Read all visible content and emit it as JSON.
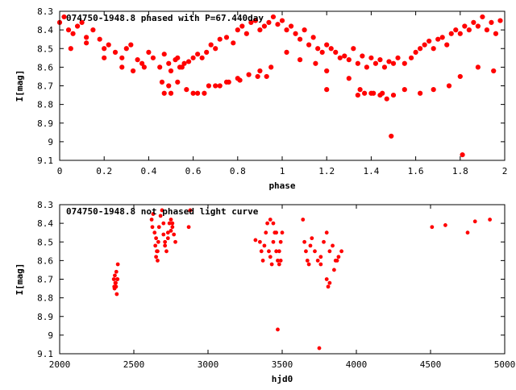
{
  "chart_data": [
    {
      "type": "scatter",
      "title": "074750-1948.8 phased with P=67.440day",
      "xlabel": "phase",
      "ylabel": "I[mag]",
      "xlim": [
        0,
        2
      ],
      "ylim": [
        9.1,
        8.3
      ],
      "y_inverted": true,
      "grid": false,
      "color": "#ff0000",
      "xticks": [
        "0",
        "0.2",
        "0.4",
        "0.6",
        "0.8",
        "1",
        "1.2",
        "1.4",
        "1.6",
        "1.8",
        "2"
      ],
      "yticks": [
        "8.3",
        "8.4",
        "8.5",
        "8.6",
        "8.7",
        "8.8",
        "8.9",
        "9",
        "9.1"
      ],
      "x": [
        0.0,
        0.02,
        0.04,
        0.06,
        0.08,
        0.1,
        0.12,
        0.15,
        0.18,
        0.2,
        0.22,
        0.25,
        0.28,
        0.3,
        0.32,
        0.35,
        0.37,
        0.4,
        0.42,
        0.45,
        0.47,
        0.49,
        0.5,
        0.52,
        0.54,
        0.56,
        0.58,
        0.6,
        0.62,
        0.64,
        0.66,
        0.68,
        0.7,
        0.72,
        0.75,
        0.78,
        0.8,
        0.82,
        0.84,
        0.86,
        0.88,
        0.9,
        0.92,
        0.94,
        0.96,
        0.98,
        1.0,
        1.02,
        1.04,
        1.06,
        1.08,
        1.1,
        1.12,
        1.14,
        1.16,
        1.18,
        1.2,
        1.22,
        1.24,
        1.26,
        1.28,
        1.3,
        1.32,
        1.34,
        1.36,
        1.38,
        1.4,
        1.42,
        1.44,
        1.46,
        1.48,
        1.5,
        1.52,
        1.55,
        1.58,
        1.6,
        1.62,
        1.64,
        1.66,
        1.68,
        1.7,
        1.72,
        1.74,
        1.76,
        1.78,
        1.8,
        1.82,
        1.84,
        1.86,
        1.88,
        1.9,
        1.92,
        1.94,
        1.96,
        1.98,
        0.05,
        0.12,
        0.2,
        0.28,
        0.33,
        0.38,
        0.46,
        0.49,
        0.53,
        0.57,
        0.62,
        0.67,
        0.72,
        0.76,
        0.8,
        0.85,
        0.9,
        0.95,
        1.02,
        1.08,
        1.15,
        1.2,
        1.3,
        1.35,
        1.4,
        1.45,
        1.5,
        1.55,
        1.62,
        1.68,
        1.75,
        1.8,
        1.88,
        1.95,
        1.2,
        1.34,
        1.37,
        1.41,
        1.44,
        1.47,
        1.49,
        1.81,
        0.53,
        0.55,
        0.47,
        0.5,
        0.6,
        0.65,
        0.7,
        0.75,
        0.81,
        0.89,
        0.93
      ],
      "y": [
        8.36,
        8.33,
        8.4,
        8.42,
        8.38,
        8.36,
        8.44,
        8.4,
        8.45,
        8.5,
        8.48,
        8.52,
        8.55,
        8.5,
        8.48,
        8.56,
        8.58,
        8.52,
        8.55,
        8.6,
        8.53,
        8.58,
        8.62,
        8.56,
        8.6,
        8.58,
        8.57,
        8.55,
        8.53,
        8.55,
        8.52,
        8.48,
        8.5,
        8.45,
        8.44,
        8.47,
        8.4,
        8.38,
        8.42,
        8.36,
        8.35,
        8.4,
        8.38,
        8.36,
        8.33,
        8.37,
        8.35,
        8.4,
        8.38,
        8.42,
        8.45,
        8.4,
        8.48,
        8.44,
        8.5,
        8.52,
        8.48,
        8.5,
        8.52,
        8.55,
        8.54,
        8.56,
        8.5,
        8.58,
        8.54,
        8.6,
        8.55,
        8.58,
        8.56,
        8.6,
        8.57,
        8.58,
        8.55,
        8.58,
        8.55,
        8.52,
        8.5,
        8.48,
        8.46,
        8.5,
        8.45,
        8.44,
        8.48,
        8.42,
        8.4,
        8.42,
        8.38,
        8.4,
        8.36,
        8.38,
        8.33,
        8.4,
        8.36,
        8.42,
        8.35,
        8.5,
        8.47,
        8.55,
        8.6,
        8.62,
        8.6,
        8.68,
        8.7,
        8.68,
        8.72,
        8.74,
        8.7,
        8.7,
        8.68,
        8.66,
        8.64,
        8.62,
        8.6,
        8.52,
        8.56,
        8.58,
        8.62,
        8.66,
        8.72,
        8.74,
        8.74,
        8.75,
        8.72,
        8.74,
        8.72,
        8.7,
        8.65,
        8.6,
        8.62,
        8.72,
        8.75,
        8.74,
        8.74,
        8.75,
        8.77,
        8.97,
        9.07,
        8.55,
        8.6,
        8.74,
        8.74,
        8.74,
        8.74,
        8.7,
        8.68,
        8.67,
        8.65,
        8.65
      ]
    },
    {
      "type": "scatter",
      "title": "074750-1948.8 not phased light curve",
      "xlabel": "hjd0",
      "ylabel": "I[mag]",
      "xlim": [
        2000,
        5000
      ],
      "ylim": [
        9.1,
        8.3
      ],
      "y_inverted": true,
      "grid": false,
      "color": "#ff0000",
      "xticks": [
        "2000",
        "2500",
        "3000",
        "3500",
        "4000",
        "4500",
        "5000"
      ],
      "yticks": [
        "8.3",
        "8.4",
        "8.5",
        "8.6",
        "8.7",
        "8.8",
        "8.9",
        "9",
        "9.1"
      ],
      "x": [
        2365,
        2370,
        2375,
        2380,
        2385,
        2390,
        2372,
        2382,
        2392,
        2368,
        2378,
        2388,
        2620,
        2625,
        2630,
        2640,
        2645,
        2650,
        2655,
        2660,
        2665,
        2670,
        2680,
        2690,
        2700,
        2710,
        2720,
        2730,
        2740,
        2750,
        2760,
        2770,
        2780,
        2650,
        2660,
        2700,
        2710,
        2730,
        2750,
        2760,
        2870,
        2880,
        3320,
        3350,
        3360,
        3370,
        3380,
        3390,
        3400,
        3410,
        3420,
        3430,
        3440,
        3450,
        3460,
        3470,
        3480,
        3490,
        3500,
        3420,
        3440,
        3460,
        3480,
        3490,
        3640,
        3650,
        3660,
        3670,
        3680,
        3690,
        3700,
        3720,
        3740,
        3760,
        3780,
        3800,
        3820,
        3840,
        3860,
        3880,
        3900,
        3800,
        3810,
        3820,
        3850,
        3870,
        3760,
        3470,
        3750,
        4510,
        4600,
        4750,
        4800,
        4900
      ],
      "y": [
        8.7,
        8.75,
        8.72,
        8.74,
        8.78,
        8.7,
        8.68,
        8.66,
        8.62,
        8.74,
        8.72,
        8.7,
        8.38,
        8.42,
        8.35,
        8.45,
        8.52,
        8.58,
        8.55,
        8.6,
        8.5,
        8.42,
        8.36,
        8.33,
        8.4,
        8.5,
        8.55,
        8.45,
        8.4,
        8.38,
        8.42,
        8.46,
        8.5,
        8.48,
        8.55,
        8.46,
        8.52,
        8.48,
        8.44,
        8.4,
        8.42,
        8.33,
        8.49,
        8.5,
        8.55,
        8.6,
        8.52,
        8.45,
        8.4,
        8.55,
        8.58,
        8.62,
        8.5,
        8.45,
        8.55,
        8.6,
        8.62,
        8.5,
        8.45,
        8.38,
        8.4,
        8.45,
        8.55,
        8.6,
        8.38,
        8.5,
        8.55,
        8.6,
        8.62,
        8.52,
        8.48,
        8.55,
        8.6,
        8.58,
        8.5,
        8.45,
        8.55,
        8.52,
        8.6,
        8.58,
        8.55,
        8.7,
        8.74,
        8.72,
        8.65,
        8.6,
        8.62,
        8.97,
        9.07,
        8.42,
        8.41,
        8.45,
        8.39,
        8.38
      ]
    }
  ]
}
